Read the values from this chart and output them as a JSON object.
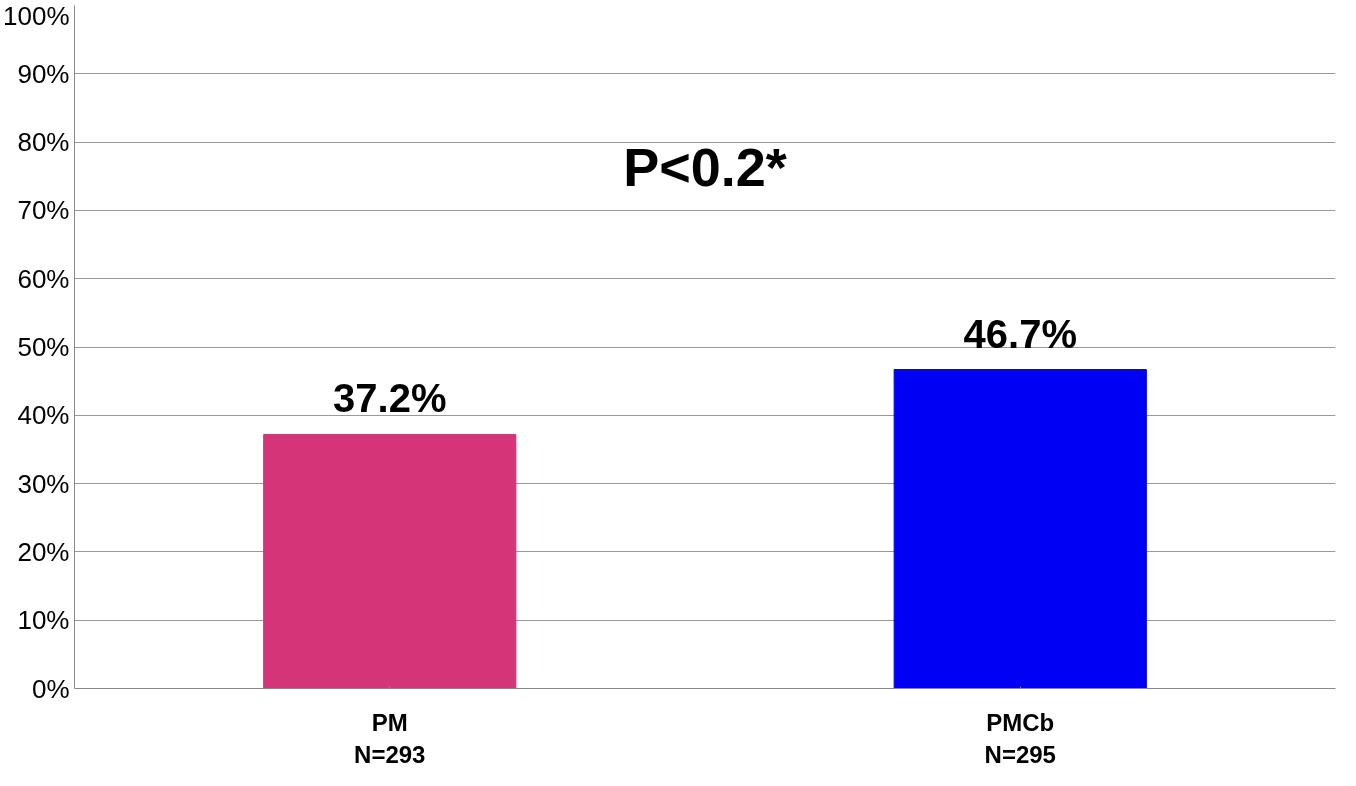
{
  "chart_data": {
    "type": "bar",
    "categories": [
      "PM\nN=293",
      "PMCb\nN=295"
    ],
    "values": [
      37.2,
      46.7
    ],
    "colors": [
      "#d63478",
      "#0000f5"
    ],
    "value_labels": [
      "37.2%",
      "46.7%"
    ],
    "annotations": [
      "P<0.2*"
    ],
    "ylim": [
      0,
      100
    ],
    "yticks": [
      {
        "value": 0,
        "label": "0%"
      },
      {
        "value": 10,
        "label": "10%"
      },
      {
        "value": 20,
        "label": "20%"
      },
      {
        "value": 30,
        "label": "30%"
      },
      {
        "value": 40,
        "label": "40%"
      },
      {
        "value": 50,
        "label": "50%"
      },
      {
        "value": 60,
        "label": "60%"
      },
      {
        "value": 70,
        "label": "70%"
      },
      {
        "value": 80,
        "label": "80%"
      },
      {
        "value": 90,
        "label": "90%"
      },
      {
        "value": 100,
        "label": "100%"
      }
    ],
    "grid": "y"
  }
}
